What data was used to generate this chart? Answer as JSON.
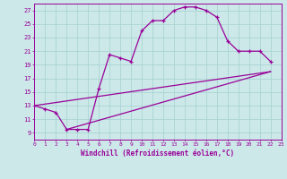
{
  "bg_color": "#cce8e8",
  "grid_color": "#aad4d4",
  "line_color": "#990099",
  "xlabel": "Windchill (Refroidissement éolien,°C)",
  "xlim": [
    0,
    23
  ],
  "ylim": [
    8,
    28
  ],
  "xticks": [
    0,
    1,
    2,
    3,
    4,
    5,
    6,
    7,
    8,
    9,
    10,
    11,
    12,
    13,
    14,
    15,
    16,
    17,
    18,
    19,
    20,
    21,
    22,
    23
  ],
  "yticks": [
    9,
    11,
    13,
    15,
    17,
    19,
    21,
    23,
    25,
    27
  ],
  "curve1_x": [
    0,
    1,
    2,
    3,
    4,
    5,
    6,
    7,
    8,
    9,
    10,
    11,
    12,
    13,
    14,
    15,
    16,
    17,
    18,
    19,
    20,
    21,
    22
  ],
  "curve1_y": [
    13.0,
    12.5,
    12.0,
    9.5,
    9.5,
    9.5,
    15.5,
    20.5,
    20.0,
    19.5,
    24.0,
    25.5,
    25.5,
    27.0,
    27.5,
    27.5,
    27.0,
    26.0,
    22.5,
    21.0,
    21.0,
    21.0,
    19.5
  ],
  "line2_x": [
    0,
    22
  ],
  "line2_y": [
    13.0,
    18.0
  ],
  "line3_x": [
    3,
    22
  ],
  "line3_y": [
    9.5,
    18.0
  ],
  "figsize": [
    3.2,
    2.0
  ],
  "dpi": 100
}
